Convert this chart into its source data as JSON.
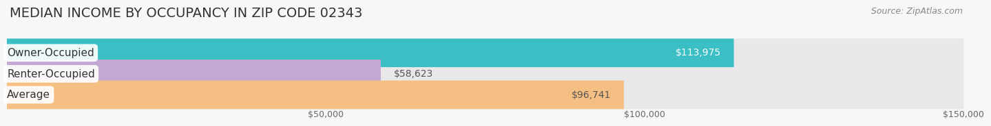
{
  "title": "MEDIAN INCOME BY OCCUPANCY IN ZIP CODE 02343",
  "source": "Source: ZipAtlas.com",
  "categories": [
    "Owner-Occupied",
    "Renter-Occupied",
    "Average"
  ],
  "values": [
    113975,
    58623,
    96741
  ],
  "bar_colors": [
    "#3BBFC4",
    "#C4A8D4",
    "#F5BE82"
  ],
  "bar_bg_color": "#E8E8E8",
  "value_labels": [
    "$113,975",
    "$58,623",
    "$96,741"
  ],
  "value_label_colors": [
    "white",
    "#555555",
    "#555555"
  ],
  "xlim_max": 150000,
  "xtick_values": [
    50000,
    100000,
    150000
  ],
  "xtick_labels": [
    "$50,000",
    "$100,000",
    "$150,000"
  ],
  "bg_color": "#F7F7F7",
  "title_fontsize": 14,
  "source_fontsize": 9,
  "label_fontsize": 11,
  "value_fontsize": 10,
  "tick_fontsize": 9,
  "grid_color": "#CCCCCC",
  "bar_height": 0.68,
  "bar_gap": 0.12
}
